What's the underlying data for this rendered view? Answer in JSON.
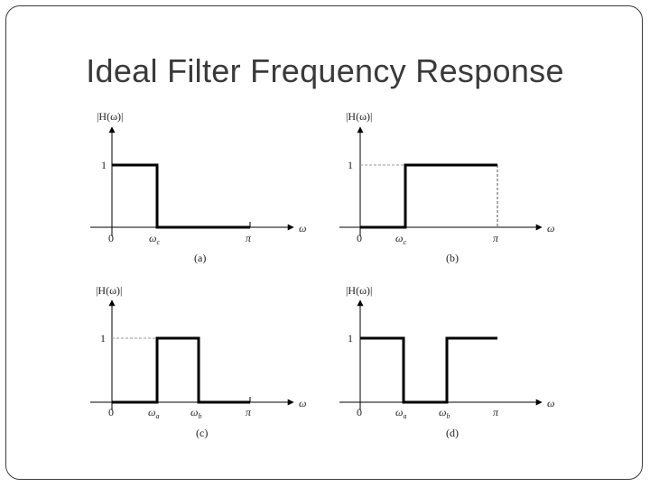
{
  "slide": {
    "title": "Ideal Filter Frequency Response"
  },
  "panels": [
    {
      "id": "a",
      "caption": "(a)",
      "y_label": "|H(ω)|",
      "omega_axis": "ω",
      "tick_labels": [
        "0",
        "ω",
        "π"
      ],
      "tick_subscripts": [
        "",
        "c",
        ""
      ],
      "level_label": "1",
      "response": "lowpass"
    },
    {
      "id": "b",
      "caption": "(b)",
      "y_label": "|H(ω)|",
      "omega_axis": "ω",
      "tick_labels": [
        "0",
        "ω",
        "π"
      ],
      "tick_subscripts": [
        "",
        "c",
        ""
      ],
      "level_label": "1",
      "response": "highpass"
    },
    {
      "id": "c",
      "caption": "(c)",
      "y_label": "|H(ω)|",
      "omega_axis": "ω",
      "tick_labels": [
        "0",
        "ω",
        "ω",
        "π"
      ],
      "tick_subscripts": [
        "",
        "a",
        "b",
        ""
      ],
      "level_label": "1",
      "response": "bandpass"
    },
    {
      "id": "d",
      "caption": "(d)",
      "y_label": "|H(ω)|",
      "omega_axis": "ω",
      "tick_labels": [
        "0",
        "ω",
        "ω",
        "π"
      ],
      "tick_subscripts": [
        "",
        "a",
        "b",
        ""
      ],
      "level_label": "1",
      "response": "bandstop"
    }
  ],
  "colors": {
    "line": "#000000",
    "guide": "#9a9a9a",
    "text": "#222222"
  }
}
